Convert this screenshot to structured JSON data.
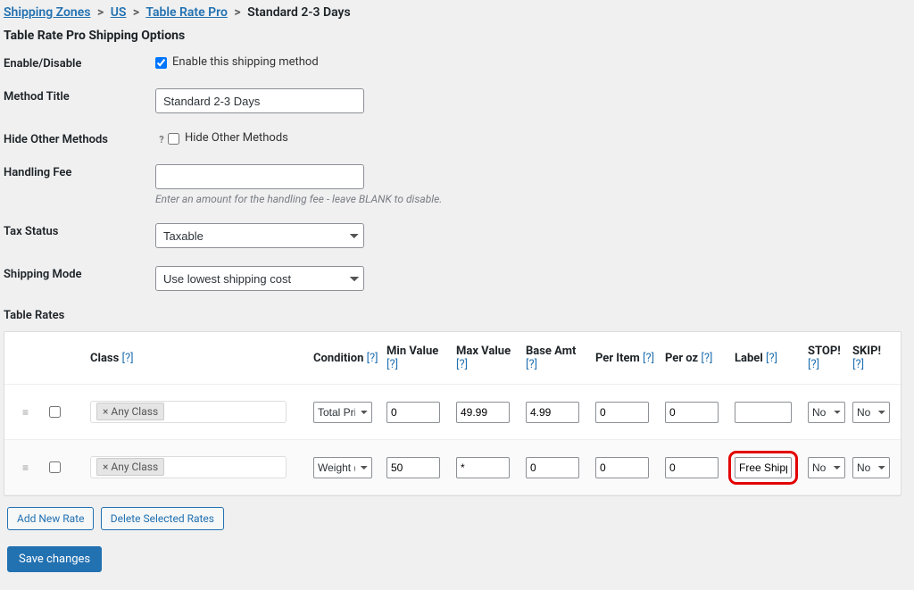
{
  "breadcrumb": {
    "zones": "Shipping Zones",
    "country": "US",
    "method": "Table Rate Pro",
    "current": "Standard 2-3 Days"
  },
  "heading": "Table Rate Pro Shipping Options",
  "labels": {
    "enable": "Enable/Disable",
    "method_title": "Method Title",
    "hide_other": "Hide Other Methods",
    "handling": "Handling Fee",
    "tax": "Tax Status",
    "mode": "Shipping Mode",
    "table_rates": "Table Rates"
  },
  "fields": {
    "enable_text": "Enable this shipping method",
    "method_title_value": "Standard 2-3 Days",
    "hide_other_text": "Hide Other Methods",
    "handling_value": "",
    "handling_desc": "Enter an amount for the handling fee - leave BLANK to disable.",
    "tax_value": "Taxable",
    "mode_value": "Use lowest shipping cost"
  },
  "table": {
    "headers": {
      "class": "Class",
      "condition": "Condition",
      "minv": "Min Value",
      "maxv": "Max Value",
      "base": "Base Amt",
      "peritem": "Per Item",
      "peroz": "Per oz",
      "label": "Label",
      "stop": "STOP!",
      "skip": "SKIP!",
      "help": "[?]"
    },
    "chip": "× Any Class",
    "rows": [
      {
        "condition": "Total Price ($)",
        "min": "0",
        "max": "49.99",
        "base": "4.99",
        "peritem": "0",
        "peroz": "0",
        "label": "",
        "stop": "No",
        "skip": "No",
        "hl": false
      },
      {
        "condition": "Weight (oz)",
        "min": "50",
        "max": "*",
        "base": "0",
        "peritem": "0",
        "peroz": "0",
        "label": "Free Shipping",
        "stop": "No",
        "skip": "No",
        "hl": true
      }
    ]
  },
  "buttons": {
    "add": "Add New Rate",
    "delete": "Delete Selected Rates",
    "save": "Save changes"
  },
  "colors": {
    "accent": "#2271b1",
    "bg": "#f0f0f1",
    "highlight": "#e30000"
  }
}
